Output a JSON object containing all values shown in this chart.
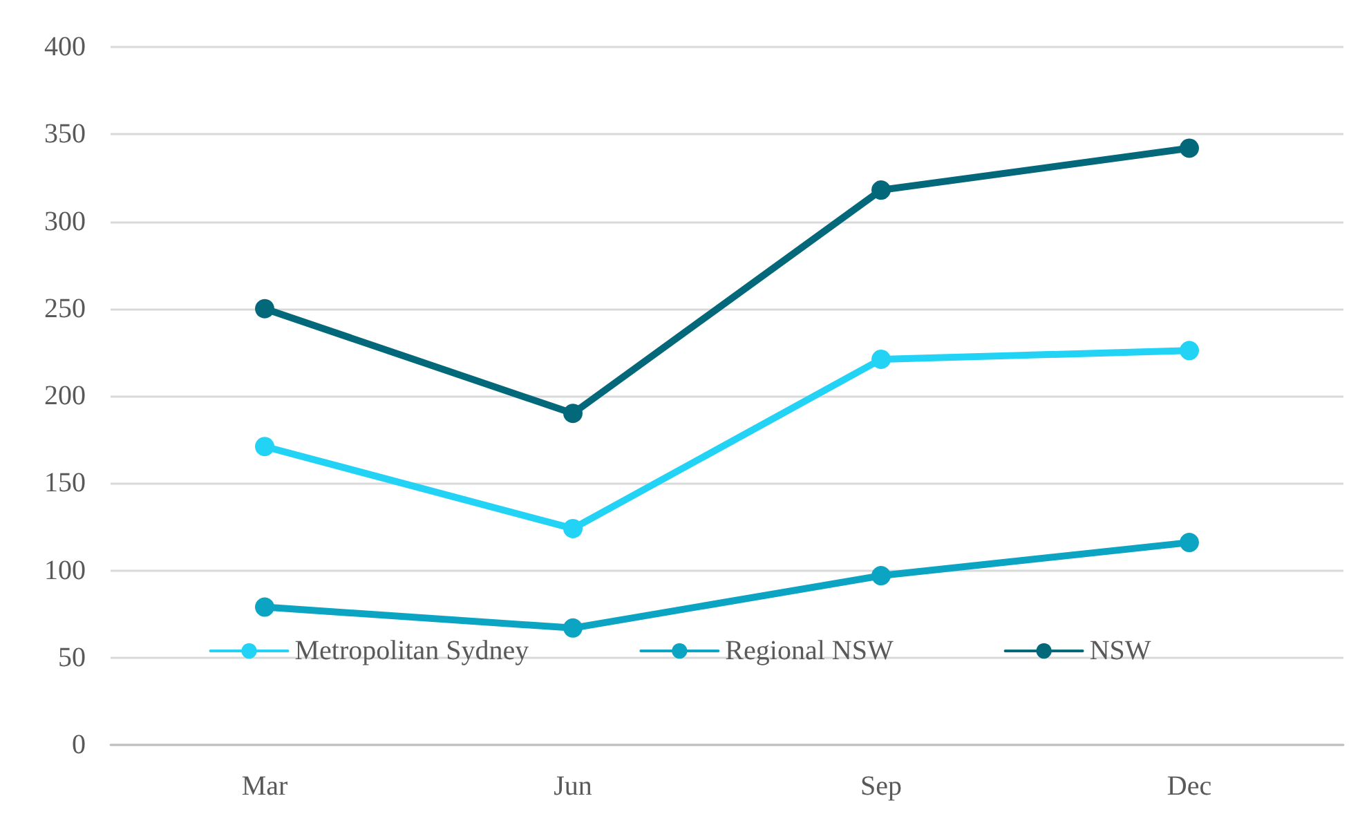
{
  "chart_data": {
    "type": "line",
    "categories": [
      "Mar",
      "Jun",
      "Sep",
      "Dec"
    ],
    "series": [
      {
        "name": "Metropolitan Sydney",
        "color": "#22d3f5",
        "values": [
          171,
          124,
          221,
          226
        ]
      },
      {
        "name": "Regional NSW",
        "color": "#0ba5c3",
        "values": [
          79,
          67,
          97,
          116
        ]
      },
      {
        "name": "NSW",
        "color": "#02687a",
        "values": [
          250,
          190,
          318,
          342
        ]
      }
    ],
    "ylim": [
      0,
      400
    ],
    "yticks": [
      0,
      50,
      100,
      150,
      200,
      250,
      300,
      350,
      400
    ],
    "grid": "y",
    "legend": "bottom",
    "marker": "circle",
    "line_style": "solid"
  }
}
